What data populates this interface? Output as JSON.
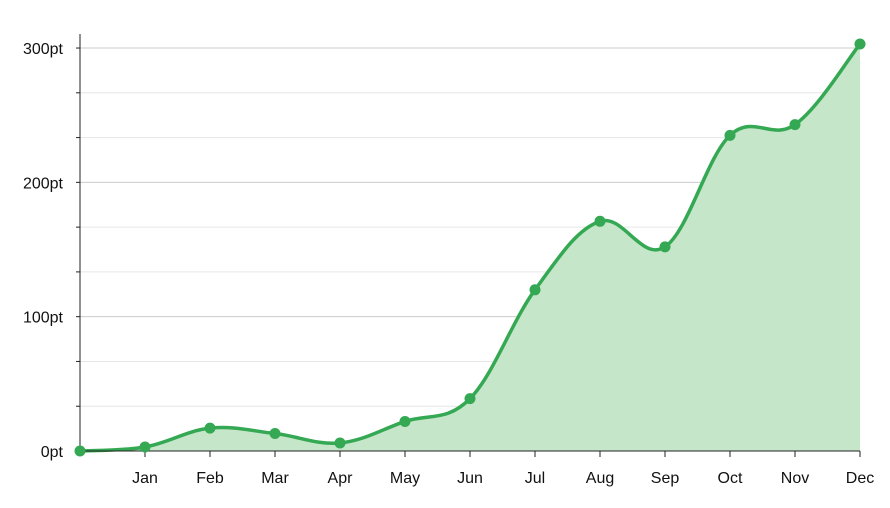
{
  "chart_data": {
    "type": "area",
    "x": [
      "",
      "Jan",
      "Feb",
      "Mar",
      "Apr",
      "May",
      "Jun",
      "Jul",
      "Aug",
      "Sep",
      "Oct",
      "Nov",
      "Dec"
    ],
    "series": [
      {
        "values": [
          0,
          3,
          17,
          13,
          6,
          22,
          39,
          120,
          171,
          152,
          235,
          243,
          303
        ]
      }
    ],
    "x_tick_labels": [
      "Jan",
      "Feb",
      "Mar",
      "Apr",
      "May",
      "Jun",
      "Jul",
      "Aug",
      "Sep",
      "Oct",
      "Nov",
      "Dec"
    ],
    "y_tick_labels": [
      "0pt",
      "100pt",
      "200pt",
      "300pt"
    ],
    "y_ticks": [
      0,
      100,
      200,
      300
    ],
    "y_minor_step": 33.333,
    "ylim": [
      0,
      303
    ],
    "title": "",
    "xlabel": "",
    "ylabel": "",
    "grid": true,
    "legend": "none",
    "colors": {
      "line": "#34a853",
      "fill": "#c5e6c9",
      "grid": "#dddddd",
      "axis": "#222222"
    }
  }
}
